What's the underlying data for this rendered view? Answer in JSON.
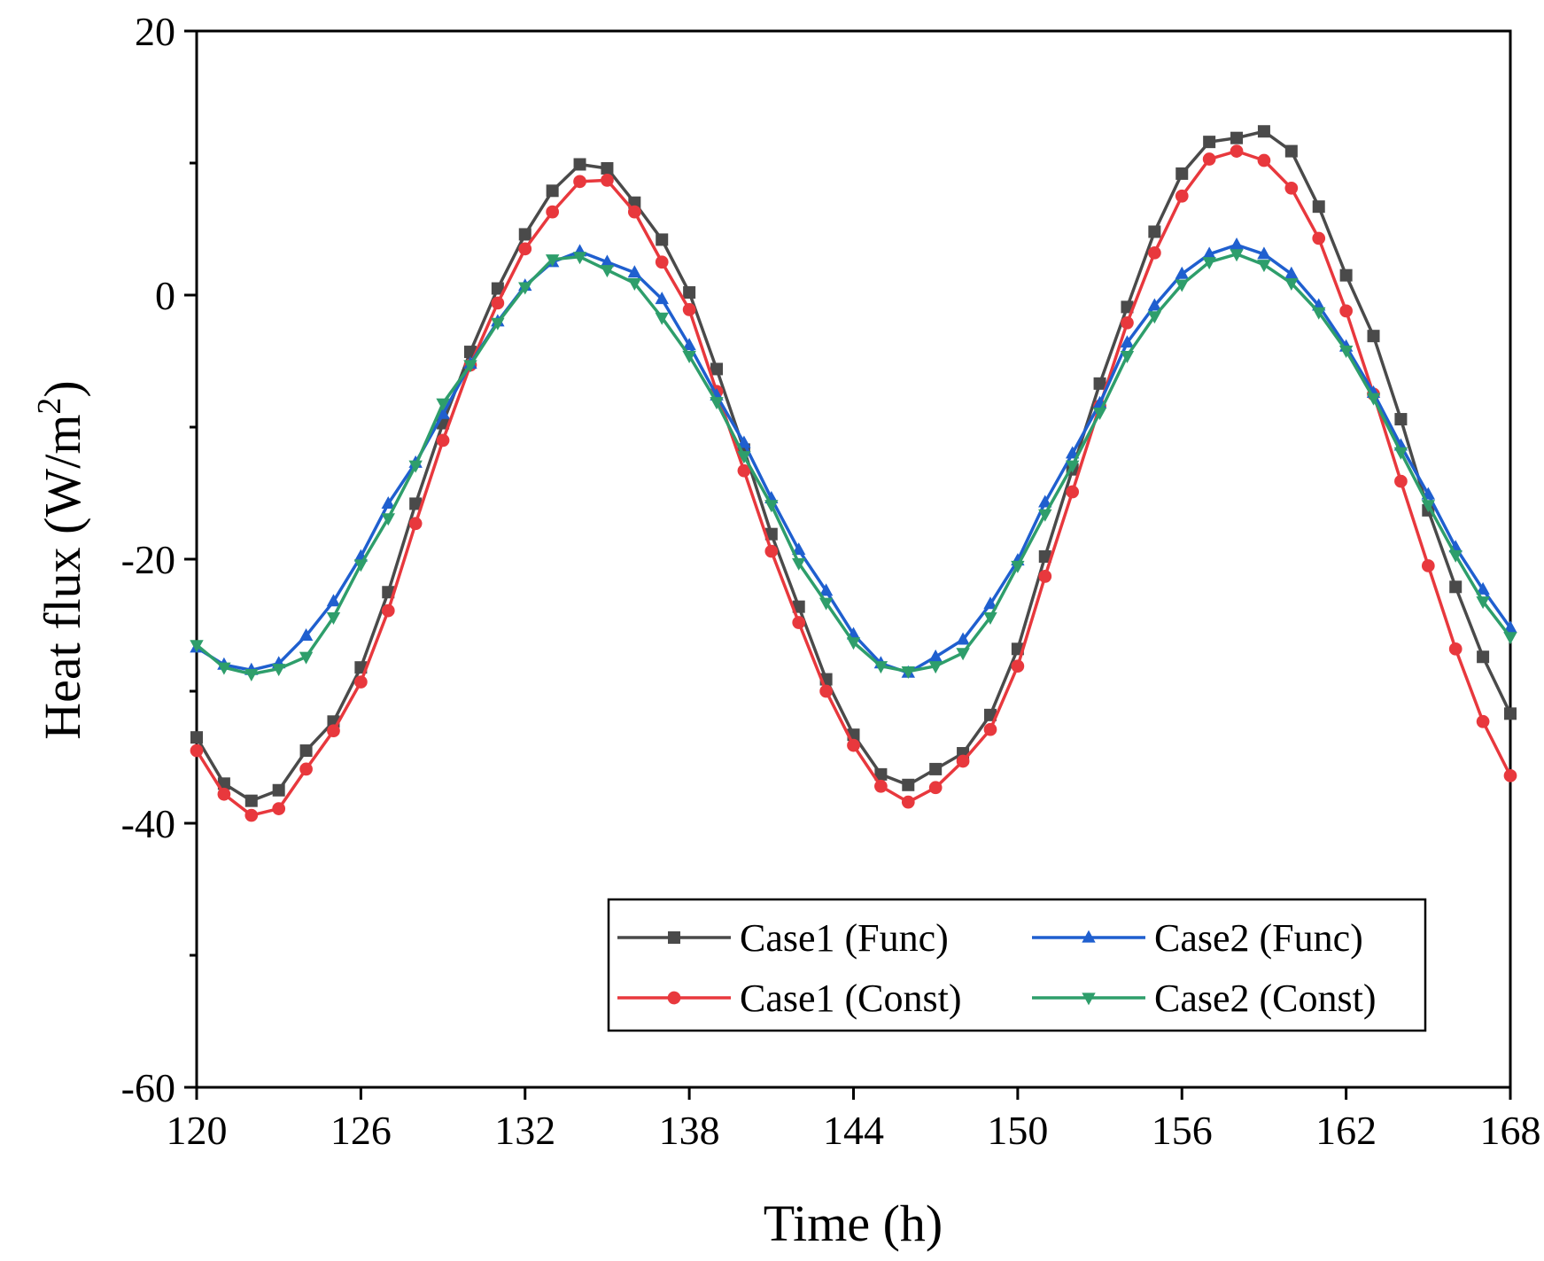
{
  "chart_data": {
    "type": "line",
    "title": "",
    "xlabel": "Time (h)",
    "ylabel": "Heat flux (W/m",
    "ylabel_sup": "2",
    "ylabel_close": ")",
    "xlim": [
      120,
      168
    ],
    "ylim": [
      -60,
      20
    ],
    "xticks": [
      120,
      126,
      132,
      138,
      144,
      150,
      156,
      162,
      168
    ],
    "xtick_labels": [
      "120",
      "126",
      "132",
      "138",
      "144",
      "150",
      "156",
      "162",
      "168"
    ],
    "yticks": [
      -60,
      -40,
      -20,
      0,
      20
    ],
    "ytick_labels": [
      "-60",
      "-40",
      "-20",
      "0",
      "20"
    ],
    "yminor_ticks": [
      -50,
      -30,
      -10,
      10
    ],
    "legend_position": "bottom-right",
    "x": [
      120,
      121,
      122,
      123,
      124,
      125,
      126,
      127,
      128,
      129,
      130,
      131,
      132,
      133,
      134,
      135,
      136,
      137,
      138,
      139,
      140,
      141,
      142,
      143,
      144,
      145,
      146,
      147,
      148,
      149,
      150,
      151,
      152,
      153,
      154,
      155,
      156,
      157,
      158,
      159,
      160,
      161,
      162,
      163,
      164,
      165,
      166,
      167,
      168
    ],
    "series": [
      {
        "name": "Case1 (Func)",
        "color": "#4a4a4a",
        "marker": "square",
        "values": [
          -33.5,
          -37,
          -38.3,
          -37.5,
          -34.5,
          -32.3,
          -28.2,
          -22.5,
          -15.8,
          -9.7,
          -4.3,
          0.5,
          4.6,
          7.9,
          9.9,
          9.6,
          7,
          4.2,
          0.2,
          -5.6,
          -11.7,
          -18.1,
          -23.6,
          -29.1,
          -33.3,
          -36.3,
          -37.1,
          -35.9,
          -34.7,
          -31.8,
          -26.8,
          -19.8,
          -13.2,
          -6.7,
          -0.9,
          4.8,
          9.2,
          11.6,
          11.9,
          12.4,
          10.9,
          6.7,
          1.5,
          -3.1,
          -9.4,
          -16.3,
          -22.1,
          -27.4,
          -31.7
        ]
      },
      {
        "name": "Case1 (Const)",
        "color": "#e8383d",
        "marker": "circle",
        "values": [
          -34.5,
          -37.8,
          -39.4,
          -38.9,
          -35.9,
          -33,
          -29.3,
          -23.9,
          -17.3,
          -11,
          -5.3,
          -0.6,
          3.5,
          6.3,
          8.6,
          8.7,
          6.3,
          2.5,
          -1.1,
          -7.3,
          -13.3,
          -19.4,
          -24.8,
          -30,
          -34.1,
          -37.2,
          -38.4,
          -37.3,
          -35.3,
          -32.9,
          -28.1,
          -21.3,
          -14.9,
          -8.4,
          -2.1,
          3.2,
          7.5,
          10.3,
          10.9,
          10.2,
          8.1,
          4.3,
          -1.2,
          -7.5,
          -14.1,
          -20.5,
          -26.8,
          -32.3,
          -36.4
        ]
      },
      {
        "name": "Case2 (Func)",
        "color": "#1f5fcf",
        "marker": "triangle-up",
        "values": [
          -26.7,
          -28,
          -28.4,
          -27.9,
          -25.8,
          -23.2,
          -19.8,
          -15.8,
          -12.7,
          -9,
          -5.2,
          -2,
          0.7,
          2.5,
          3.3,
          2.5,
          1.7,
          -0.3,
          -3.8,
          -7.6,
          -11.2,
          -15.4,
          -19.3,
          -22.4,
          -25.7,
          -27.9,
          -28.6,
          -27.4,
          -26.1,
          -23.4,
          -20.1,
          -15.7,
          -12,
          -8.2,
          -3.6,
          -0.8,
          1.6,
          3.1,
          3.8,
          3.1,
          1.6,
          -0.8,
          -3.9,
          -7.4,
          -11.4,
          -15.1,
          -19.1,
          -22.3,
          -25.2
        ]
      },
      {
        "name": "Case2 (Const)",
        "color": "#2e9e6b",
        "marker": "triangle-down",
        "values": [
          -26.5,
          -28.2,
          -28.7,
          -28.3,
          -27.4,
          -24.4,
          -20.4,
          -16.9,
          -12.9,
          -8.2,
          -5.3,
          -2.1,
          0.6,
          2.7,
          2.9,
          1.9,
          0.9,
          -1.7,
          -4.6,
          -8.1,
          -12.2,
          -15.9,
          -20.3,
          -23.3,
          -26.3,
          -28.1,
          -28.5,
          -28.1,
          -27.1,
          -24.4,
          -20.5,
          -16.6,
          -12.9,
          -8.9,
          -4.6,
          -1.6,
          0.8,
          2.5,
          3.1,
          2.3,
          0.9,
          -1.3,
          -4.2,
          -7.8,
          -11.9,
          -15.9,
          -19.7,
          -23.2,
          -25.9
        ]
      }
    ]
  }
}
